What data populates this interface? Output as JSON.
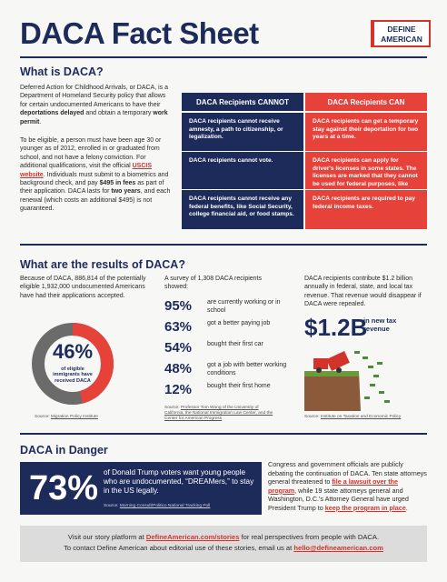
{
  "header": {
    "title": "DACA Fact Sheet",
    "logo": [
      "DEFINE",
      "AMERICAN"
    ]
  },
  "what_is": {
    "heading": "What is DACA?",
    "paragraphs": [
      [
        "Deferred Action for Childhood Arrivals, or DACA, is a Department of Homeland Security policy that allows for certain undocumented Americans to have their ",
        "deportations delayed",
        " and obtain a temporary ",
        "work permit",
        "."
      ],
      [
        "To be eligible, a person must have been age 30 or younger as of 2012, enrolled in or graduated from school, and not have a felony conviction. For additional qualifications, visit the official ",
        "USCIS website",
        ". Individuals must submit to a biometrics and background check, and pay ",
        "$495 in fees",
        " as part of their application. DACA lasts for ",
        "two years",
        ", and each renewal (which costs an additional $495) is not guaranteed."
      ]
    ]
  },
  "table": {
    "headers": [
      "DACA Recipients CANNOT",
      "DACA Recipients CAN"
    ],
    "rows": [
      [
        "DACA recipients cannot receive amnesty, a path to citizenship, or legalization.",
        "DACA recipients can get a temporary stay against their deportation for two years at a time."
      ],
      [
        "DACA recipients cannot vote.",
        "DACA recipients can apply for driver's licenses in some states. The licenses are marked that they cannot be used for federal purposes, like voting."
      ],
      [
        "DACA recipients cannot receive any federal benefits, like Social Security, college financial aid, or food stamps.",
        "DACA recipients are required to pay federal income taxes."
      ]
    ]
  },
  "results": {
    "heading": "What are the results of DACA?",
    "applications": {
      "text": "Because of DACA, 886,814 of the potentially eligible 1,932,000 undocumented Americans have had their applications accepted.",
      "donut": {
        "value": 46,
        "label": "46%"
      },
      "donut_caption": "of eligible immigrants have received DACA",
      "source": [
        "Source: ",
        "Migration Policy Institute"
      ]
    },
    "survey": {
      "intro": "A survey of 1,308 DACA recipients showed:",
      "items": [
        {
          "percent": "95%",
          "text": "are currently working or in school"
        },
        {
          "percent": "63%",
          "text": "got a better paying job"
        },
        {
          "percent": "54%",
          "text": "bought their first car"
        },
        {
          "percent": "48%",
          "text": "got a job with better working conditions"
        },
        {
          "percent": "12%",
          "text": "bought their first home"
        }
      ],
      "source": [
        "Source: ",
        "Professor Tom Wong of the University of California, the National Immigration Law Center, and the Center for American Progress"
      ]
    },
    "tax": {
      "text": "DACA recipients contribute $1.2 billion annually in federal, state, and local tax revenue. That revenue would disappear if DACA were repealed.",
      "amount": "$1.2B",
      "amount_caption": "in new tax revenue",
      "source": [
        "Source: ",
        "Institute on Taxation and Economic Policy"
      ]
    }
  },
  "danger": {
    "heading": "DACA in Danger",
    "stat": "73%",
    "stat_text": "of Donald Trump voters want young people who are undocumented, “DREAMers,” to stay in the US legally.",
    "source": [
      "Source: ",
      "Morning Consult/Politico National Tracking Poll"
    ],
    "text": [
      "Congress and government officials are publicly debating the continuation of DACA. Ten state attorneys general threatened to ",
      "file a lawsuit over the program",
      ", while 19 state attorneys general and Washington, D.C.'s Attorney General have urged President Trump to ",
      "keep the program in place",
      "."
    ]
  },
  "footer": {
    "lines": [
      [
        "Visit our story platform at ",
        "DefineAmerican.com/stories",
        " for real perspectives from people with DACA."
      ],
      [
        "To contact Define American about editorial use of these stories, email us at ",
        "hello@defineamerican.com"
      ]
    ]
  }
}
